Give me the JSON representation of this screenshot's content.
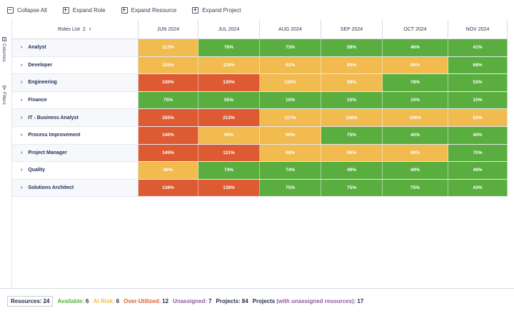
{
  "toolbar": {
    "collapse_all": "Collapse All",
    "expand_role": "Expand Role",
    "expand_resource": "Expand Resource",
    "expand_project": "Expand Project"
  },
  "sidepanel": {
    "columns_label": "Columns",
    "filters_label": "Filters"
  },
  "grid": {
    "role_header": "Roles List",
    "role_header_count": "2",
    "months": [
      "JUN 2024",
      "JUL 2024",
      "AUG 2024",
      "SEP 2024",
      "OCT 2024",
      "NOV 2024"
    ],
    "rows": [
      {
        "role": "Analyst",
        "values": [
          "113%",
          "76%",
          "73%",
          "58%",
          "46%",
          "41%"
        ],
        "status": [
          "yellow",
          "green",
          "green",
          "green",
          "green",
          "green"
        ]
      },
      {
        "role": "Developer",
        "values": [
          "125%",
          "118%",
          "92%",
          "90%",
          "85%",
          "68%"
        ],
        "status": [
          "yellow",
          "yellow",
          "yellow",
          "yellow",
          "yellow",
          "green"
        ]
      },
      {
        "role": "Engineering",
        "values": [
          "130%",
          "130%",
          "120%",
          "98%",
          "78%",
          "53%"
        ],
        "status": [
          "red",
          "red",
          "yellow",
          "yellow",
          "green",
          "green"
        ]
      },
      {
        "role": "Finance",
        "values": [
          "75%",
          "55%",
          "10%",
          "10%",
          "10%",
          "10%"
        ],
        "status": [
          "green",
          "green",
          "green",
          "green",
          "green",
          "green"
        ]
      },
      {
        "role": "IT - Business Analyst",
        "values": [
          "255%",
          "213%",
          "117%",
          "108%",
          "108%",
          "83%"
        ],
        "status": [
          "red",
          "red",
          "yellow",
          "yellow",
          "yellow",
          "yellow"
        ]
      },
      {
        "role": "Process Improvement",
        "values": [
          "140%",
          "90%",
          "90%",
          "75%",
          "40%",
          "40%"
        ],
        "status": [
          "red",
          "yellow",
          "yellow",
          "green",
          "green",
          "green"
        ]
      },
      {
        "role": "Project Manager",
        "values": [
          "145%",
          "131%",
          "98%",
          "96%",
          "89%",
          "70%"
        ],
        "status": [
          "red",
          "red",
          "yellow",
          "yellow",
          "yellow",
          "green"
        ]
      },
      {
        "role": "Quality",
        "values": [
          "86%",
          "74%",
          "74%",
          "49%",
          "49%",
          "49%"
        ],
        "status": [
          "yellow",
          "green",
          "green",
          "green",
          "green",
          "green"
        ]
      },
      {
        "role": "Solutions Architect",
        "values": [
          "138%",
          "138%",
          "75%",
          "75%",
          "75%",
          "43%"
        ],
        "status": [
          "red",
          "red",
          "green",
          "green",
          "green",
          "green"
        ]
      }
    ]
  },
  "colors": {
    "green": "#5aae3f",
    "yellow": "#f1bb4f",
    "red": "#de5a32",
    "unassigned": "#8a5a9e",
    "projects_unassigned": "#8a5a9e"
  },
  "footer": {
    "resources_label": "Resources:",
    "resources_value": "24",
    "available_label": "Available:",
    "available_value": "6",
    "at_risk_label": "At Risk:",
    "at_risk_value": "6",
    "over_label": "Over-Utilized:",
    "over_value": "12",
    "unassigned_label": "Unassigned:",
    "unassigned_value": "7",
    "projects_label": "Projects:",
    "projects_value": "84",
    "projects_unassigned_label": "Projects",
    "projects_unassigned_paren": "(with unassigned resources):",
    "projects_unassigned_value": "17"
  }
}
